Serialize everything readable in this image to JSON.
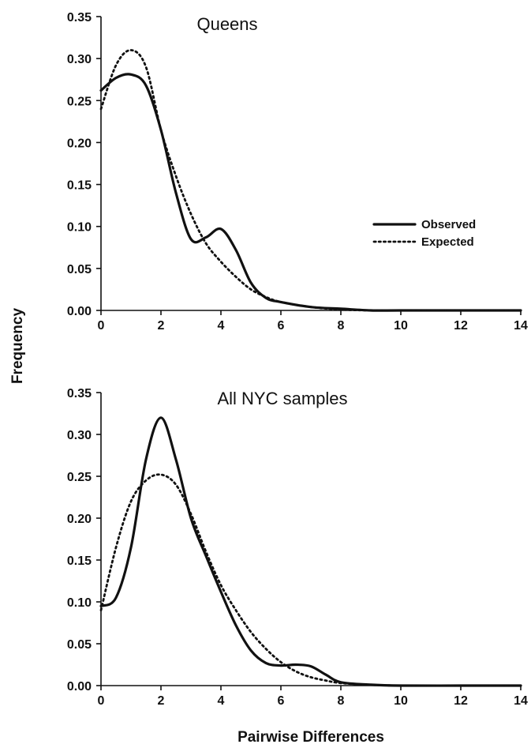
{
  "figure": {
    "ylabel": "Frequency",
    "xlabel": "Pairwise Differences"
  },
  "chart_data": [
    {
      "type": "line",
      "title": "Queens",
      "xlim": [
        0,
        14
      ],
      "ylim": [
        0,
        0.35
      ],
      "xticks": [
        "0",
        "2",
        "4",
        "6",
        "8",
        "10",
        "12",
        "14"
      ],
      "yticks": [
        "0.00",
        "0.05",
        "0.10",
        "0.15",
        "0.20",
        "0.25",
        "0.30",
        "0.35"
      ],
      "legend": {
        "position": "right",
        "entries": [
          "Observed",
          "Expected"
        ]
      },
      "series": [
        {
          "name": "Observed",
          "style": "solid",
          "x": [
            0,
            0.5,
            1,
            1.5,
            2,
            2.5,
            3,
            3.5,
            4,
            4.5,
            5,
            5.5,
            6,
            7,
            8,
            9,
            10,
            12,
            14
          ],
          "y": [
            0.262,
            0.277,
            0.281,
            0.268,
            0.215,
            0.14,
            0.085,
            0.087,
            0.097,
            0.072,
            0.033,
            0.015,
            0.01,
            0.004,
            0.002,
            0.0,
            0.0,
            0.0,
            0.0
          ]
        },
        {
          "name": "Expected",
          "style": "dotted",
          "x": [
            0,
            0.5,
            1,
            1.5,
            2,
            2.5,
            3,
            3.5,
            4,
            4.5,
            5,
            5.5,
            6,
            7,
            8,
            9,
            10,
            12,
            14
          ],
          "y": [
            0.24,
            0.292,
            0.31,
            0.29,
            0.215,
            0.16,
            0.115,
            0.08,
            0.058,
            0.04,
            0.025,
            0.016,
            0.01,
            0.004,
            0.001,
            0.0,
            0.0,
            0.0,
            0.0
          ]
        }
      ]
    },
    {
      "type": "line",
      "title": "All NYC samples",
      "xlim": [
        0,
        14
      ],
      "ylim": [
        0,
        0.35
      ],
      "xticks": [
        "0",
        "2",
        "4",
        "6",
        "8",
        "10",
        "12",
        "14"
      ],
      "yticks": [
        "0.00",
        "0.05",
        "0.10",
        "0.15",
        "0.20",
        "0.25",
        "0.30",
        "0.35"
      ],
      "series": [
        {
          "name": "Observed",
          "style": "solid",
          "x": [
            0,
            0.5,
            1,
            1.5,
            2,
            2.5,
            3,
            3.5,
            4,
            4.5,
            5,
            5.5,
            6,
            6.5,
            7,
            7.5,
            8,
            9,
            10,
            12,
            14
          ],
          "y": [
            0.095,
            0.105,
            0.165,
            0.27,
            0.32,
            0.27,
            0.2,
            0.155,
            0.112,
            0.072,
            0.042,
            0.027,
            0.024,
            0.025,
            0.023,
            0.013,
            0.004,
            0.001,
            0.0,
            0.0,
            0.0
          ]
        },
        {
          "name": "Expected",
          "style": "dotted",
          "x": [
            0,
            0.5,
            1,
            1.5,
            2,
            2.5,
            3,
            3.5,
            4,
            4.5,
            5,
            5.5,
            6,
            6.5,
            7,
            7.5,
            8,
            9,
            10,
            12,
            14
          ],
          "y": [
            0.09,
            0.165,
            0.22,
            0.245,
            0.252,
            0.24,
            0.205,
            0.16,
            0.12,
            0.09,
            0.064,
            0.044,
            0.028,
            0.017,
            0.01,
            0.006,
            0.003,
            0.001,
            0.0,
            0.0,
            0.0
          ]
        }
      ]
    }
  ]
}
